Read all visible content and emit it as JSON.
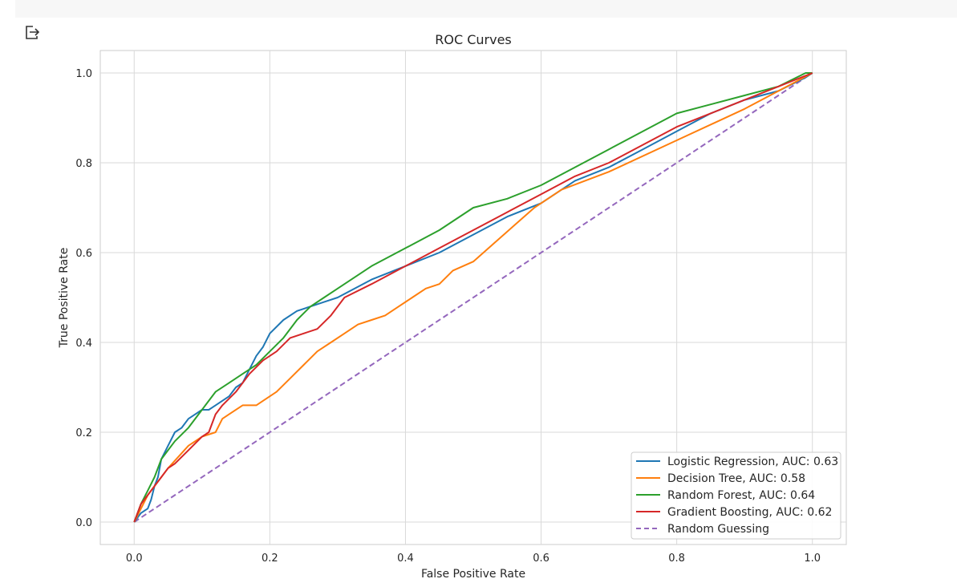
{
  "toolbar": {
    "export_icon": "export-icon"
  },
  "chart_data": {
    "type": "line",
    "title": "ROC Curves",
    "xlabel": "False Positive Rate",
    "ylabel": "True Positive Rate",
    "xlim": [
      -0.05,
      1.05
    ],
    "ylim": [
      -0.05,
      1.05
    ],
    "xticks": [
      "0.0",
      "0.2",
      "0.4",
      "0.6",
      "0.8",
      "1.0"
    ],
    "yticks": [
      "0.0",
      "0.2",
      "0.4",
      "0.6",
      "0.8",
      "1.0"
    ],
    "grid": true,
    "legend_position": "lower-right",
    "series": [
      {
        "name": "Logistic Regression, AUC: 0.63",
        "color": "#1f77b4",
        "dash": false,
        "x": [
          0.0,
          0.01,
          0.02,
          0.025,
          0.03,
          0.035,
          0.04,
          0.05,
          0.06,
          0.07,
          0.08,
          0.09,
          0.1,
          0.11,
          0.12,
          0.14,
          0.15,
          0.16,
          0.17,
          0.18,
          0.19,
          0.2,
          0.22,
          0.24,
          0.26,
          0.28,
          0.3,
          0.35,
          0.4,
          0.45,
          0.5,
          0.55,
          0.6,
          0.65,
          0.7,
          0.75,
          0.8,
          0.85,
          0.9,
          0.95,
          0.99,
          1.0
        ],
        "y": [
          0.0,
          0.02,
          0.03,
          0.05,
          0.08,
          0.1,
          0.14,
          0.17,
          0.2,
          0.21,
          0.23,
          0.24,
          0.25,
          0.25,
          0.26,
          0.28,
          0.3,
          0.31,
          0.34,
          0.37,
          0.39,
          0.42,
          0.45,
          0.47,
          0.48,
          0.49,
          0.5,
          0.54,
          0.57,
          0.6,
          0.64,
          0.68,
          0.71,
          0.76,
          0.79,
          0.83,
          0.87,
          0.91,
          0.94,
          0.96,
          0.99,
          1.0
        ]
      },
      {
        "name": "Decision Tree, AUC: 0.58",
        "color": "#ff7f0e",
        "dash": false,
        "x": [
          0.0,
          0.02,
          0.05,
          0.08,
          0.1,
          0.12,
          0.13,
          0.14,
          0.16,
          0.18,
          0.19,
          0.21,
          0.23,
          0.25,
          0.27,
          0.29,
          0.31,
          0.33,
          0.35,
          0.37,
          0.39,
          0.41,
          0.43,
          0.45,
          0.47,
          0.5,
          0.53,
          0.56,
          0.59,
          0.61,
          0.63,
          0.7,
          0.8,
          0.9,
          1.0
        ],
        "y": [
          0.0,
          0.06,
          0.12,
          0.17,
          0.19,
          0.2,
          0.23,
          0.24,
          0.26,
          0.26,
          0.27,
          0.29,
          0.32,
          0.35,
          0.38,
          0.4,
          0.42,
          0.44,
          0.45,
          0.46,
          0.48,
          0.5,
          0.52,
          0.53,
          0.56,
          0.58,
          0.62,
          0.66,
          0.7,
          0.72,
          0.74,
          0.78,
          0.85,
          0.92,
          1.0
        ]
      },
      {
        "name": "Random Forest, AUC: 0.64",
        "color": "#2ca02c",
        "dash": false,
        "x": [
          0.0,
          0.01,
          0.02,
          0.03,
          0.04,
          0.05,
          0.06,
          0.08,
          0.1,
          0.12,
          0.14,
          0.16,
          0.18,
          0.2,
          0.22,
          0.24,
          0.26,
          0.28,
          0.3,
          0.35,
          0.4,
          0.45,
          0.5,
          0.55,
          0.6,
          0.65,
          0.7,
          0.75,
          0.8,
          0.85,
          0.9,
          0.95,
          0.99,
          1.0
        ],
        "y": [
          0.0,
          0.04,
          0.07,
          0.1,
          0.14,
          0.16,
          0.18,
          0.21,
          0.25,
          0.29,
          0.31,
          0.33,
          0.35,
          0.38,
          0.41,
          0.45,
          0.48,
          0.5,
          0.52,
          0.57,
          0.61,
          0.65,
          0.7,
          0.72,
          0.75,
          0.79,
          0.83,
          0.87,
          0.91,
          0.93,
          0.95,
          0.97,
          1.0,
          1.0
        ]
      },
      {
        "name": "Gradient Boosting, AUC: 0.62",
        "color": "#d62728",
        "dash": false,
        "x": [
          0.0,
          0.01,
          0.02,
          0.03,
          0.04,
          0.05,
          0.06,
          0.08,
          0.1,
          0.11,
          0.12,
          0.13,
          0.15,
          0.17,
          0.19,
          0.21,
          0.23,
          0.25,
          0.27,
          0.29,
          0.31,
          0.35,
          0.4,
          0.45,
          0.5,
          0.55,
          0.6,
          0.65,
          0.7,
          0.75,
          0.8,
          0.85,
          0.9,
          0.95,
          1.0
        ],
        "y": [
          0.0,
          0.04,
          0.06,
          0.08,
          0.1,
          0.12,
          0.13,
          0.16,
          0.19,
          0.2,
          0.24,
          0.26,
          0.29,
          0.33,
          0.36,
          0.38,
          0.41,
          0.42,
          0.43,
          0.46,
          0.5,
          0.53,
          0.57,
          0.61,
          0.65,
          0.69,
          0.73,
          0.77,
          0.8,
          0.84,
          0.88,
          0.91,
          0.94,
          0.97,
          1.0
        ]
      },
      {
        "name": "Random Guessing",
        "color": "#9467bd",
        "dash": true,
        "x": [
          0.0,
          1.0
        ],
        "y": [
          0.0,
          1.0
        ]
      }
    ]
  }
}
